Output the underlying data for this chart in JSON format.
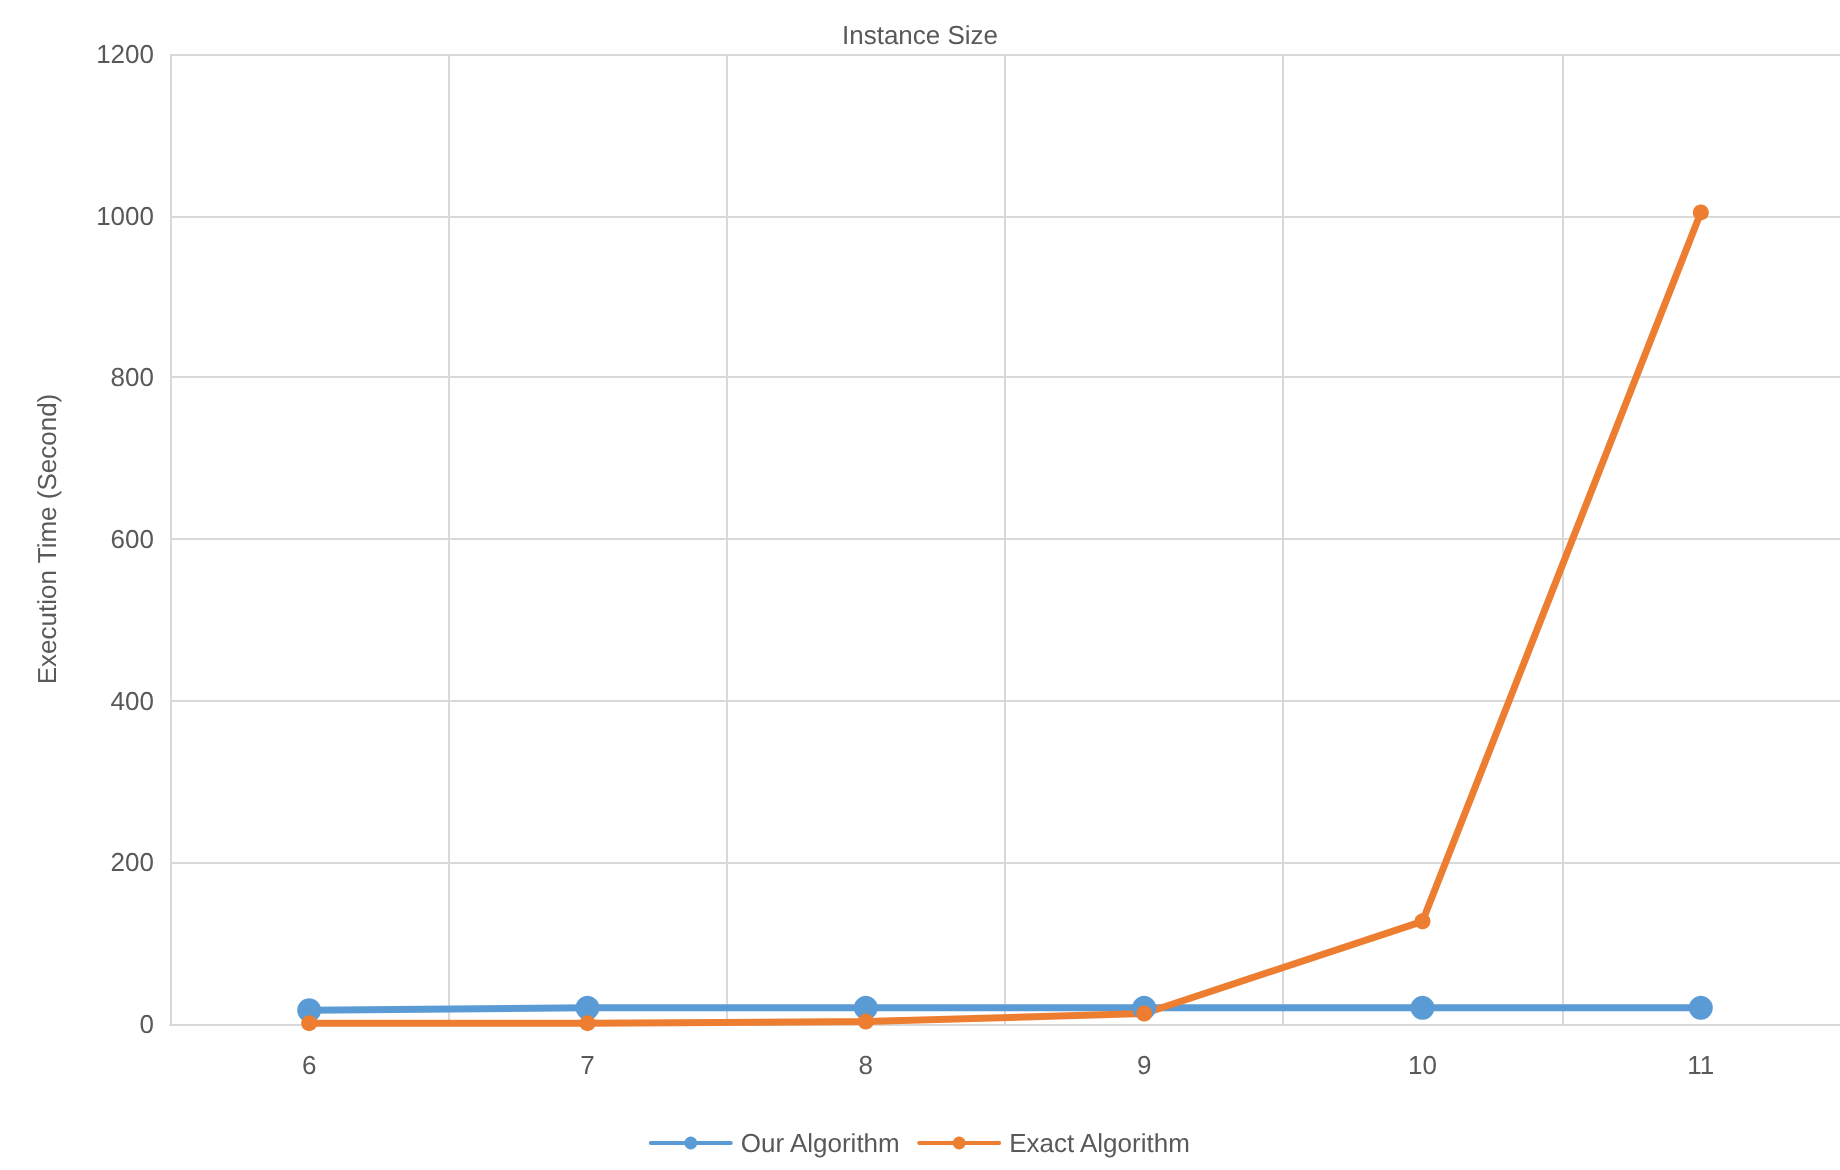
{
  "chart_data": {
    "type": "line",
    "xlabel": "Instance Size",
    "ylabel": "Execution Time (Second)",
    "categories": [
      "6",
      "7",
      "8",
      "9",
      "10",
      "11"
    ],
    "series": [
      {
        "name": "Our Algorithm",
        "color": "#5b9bd5",
        "values": [
          17,
          20,
          20,
          20,
          20,
          20
        ]
      },
      {
        "name": "Exact Algorithm",
        "color": "#ed7d31",
        "values": [
          1,
          1,
          3,
          13,
          127,
          1004
        ]
      }
    ],
    "ylim": [
      0,
      1200
    ],
    "yticks": [
      0,
      200,
      400,
      600,
      800,
      1000,
      1200
    ],
    "grid": true,
    "legend": "bottom",
    "marker": "circle",
    "line_style": "solid"
  }
}
